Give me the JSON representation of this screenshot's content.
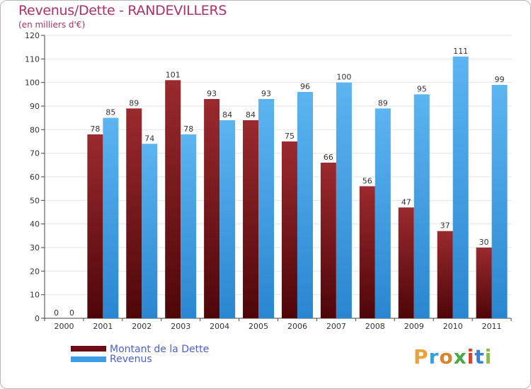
{
  "title": "Revenus/Dette - RANDEVILLERS",
  "subtitle": "(en milliers d'€)",
  "legend": [
    {
      "label": "Montant de la Dette",
      "color": "#6b0d12"
    },
    {
      "label": "Revenus",
      "color": "#3d9ee6"
    }
  ],
  "logo": {
    "text": "Proxiti",
    "letter_colors": [
      "#e8a43a",
      "#3aa0d8",
      "#d8862e",
      "#4aa84a",
      "#d8402e",
      "#3a7fd8",
      "#8ac03a"
    ]
  },
  "chart_data": {
    "type": "bar",
    "title": "Revenus/Dette - RANDEVILLERS",
    "subtitle": "(en milliers d'€)",
    "categories": [
      "2000",
      "2001",
      "2002",
      "2003",
      "2004",
      "2005",
      "2006",
      "2007",
      "2008",
      "2009",
      "2010",
      "2011"
    ],
    "series": [
      {
        "name": "Montant de la Dette",
        "color": "#6b0d12",
        "values": [
          0,
          78,
          89,
          101,
          93,
          84,
          75,
          66,
          56,
          47,
          37,
          30
        ]
      },
      {
        "name": "Revenus",
        "color": "#3d9ee6",
        "values": [
          0,
          85,
          74,
          78,
          84,
          93,
          96,
          100,
          89,
          95,
          111,
          99
        ]
      }
    ],
    "yticks": [
      0,
      10,
      20,
      30,
      40,
      50,
      60,
      70,
      80,
      90,
      100,
      110,
      120
    ],
    "ylim": [
      0,
      120
    ],
    "grid": true,
    "legend_position": "bottom-left"
  }
}
